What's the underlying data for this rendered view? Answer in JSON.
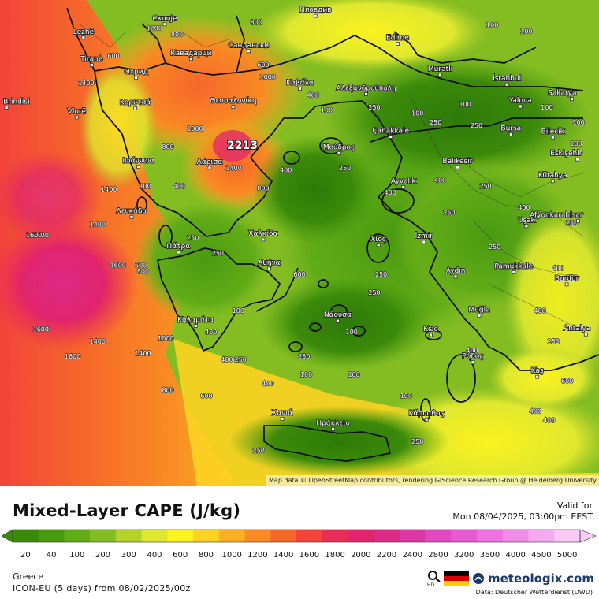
{
  "title": "Mixed-Layer CAPE (J/kg)",
  "valid_label": "Valid for",
  "valid_time": "Mon 08/04/2025, 03:00pm EEST",
  "region": "Greece",
  "model": "ICON-EU (5 days) from 08/02/2025/00z",
  "brand": "meteologix.com",
  "data_credit": "Data: Deutscher Wetterdienst (DWD)",
  "attribution": "Map data © OpenStreetMap contributors, rendering GIScience Research Group @ Heidelberg University",
  "peak_value": "2213",
  "scale": [
    {
      "label": "20",
      "color": "#3b8a0a"
    },
    {
      "label": "40",
      "color": "#4a9a10"
    },
    {
      "label": "100",
      "color": "#62ac18"
    },
    {
      "label": "200",
      "color": "#84bd22"
    },
    {
      "label": "300",
      "color": "#b4d22a"
    },
    {
      "label": "400",
      "color": "#dfe82e"
    },
    {
      "label": "600",
      "color": "#fbf21f"
    },
    {
      "label": "800",
      "color": "#fcd322"
    },
    {
      "label": "1000",
      "color": "#fbaf22"
    },
    {
      "label": "1200",
      "color": "#f98a24"
    },
    {
      "label": "1400",
      "color": "#f6672a"
    },
    {
      "label": "1600",
      "color": "#f2443a"
    },
    {
      "label": "1800",
      "color": "#ea2b55"
    },
    {
      "label": "2000",
      "color": "#e1246c"
    },
    {
      "label": "2200",
      "color": "#dc2a87"
    },
    {
      "label": "2400",
      "color": "#dc38a3"
    },
    {
      "label": "2800",
      "color": "#e247c0"
    },
    {
      "label": "3200",
      "color": "#e85ad4"
    },
    {
      "label": "3600",
      "color": "#ee72e2"
    },
    {
      "label": "4000",
      "color": "#f28ceb"
    },
    {
      "label": "4500",
      "color": "#f6a8f1"
    },
    {
      "label": "5000",
      "color": "#fbcbf8"
    }
  ],
  "cities": [
    {
      "name": "Пловдив",
      "lon": 24.75,
      "lat": 42.14
    },
    {
      "name": "Скопје",
      "lon": 21.43,
      "lat": 42.0
    },
    {
      "name": "Lezhë",
      "lon": 19.64,
      "lat": 41.78
    },
    {
      "name": "Tiranë",
      "lon": 19.82,
      "lat": 41.33
    },
    {
      "name": "Кавадарци",
      "lon": 22.01,
      "lat": 41.43
    },
    {
      "name": "Сандански",
      "lon": 23.28,
      "lat": 41.56
    },
    {
      "name": "Edirne",
      "lon": 26.56,
      "lat": 41.68
    },
    {
      "name": "Охрид",
      "lon": 20.8,
      "lat": 41.12
    },
    {
      "name": "Muratlı",
      "lon": 27.5,
      "lat": 41.17
    },
    {
      "name": "İstanbul",
      "lon": 28.97,
      "lat": 41.01
    },
    {
      "name": "Καβάλα",
      "lon": 24.41,
      "lat": 40.94
    },
    {
      "name": "Αλεξανδρούπολη",
      "lon": 25.87,
      "lat": 40.85
    },
    {
      "name": "Θεσσαλονίκη",
      "lon": 22.94,
      "lat": 40.64
    },
    {
      "name": "Κορυτσά",
      "lon": 20.78,
      "lat": 40.62
    },
    {
      "name": "Vlorë",
      "lon": 19.49,
      "lat": 40.47
    },
    {
      "name": "Brindisi",
      "lon": 17.94,
      "lat": 40.63
    },
    {
      "name": "Yalova",
      "lon": 29.27,
      "lat": 40.65
    },
    {
      "name": "Sakarya",
      "lon": 30.4,
      "lat": 40.77
    },
    {
      "name": "Çanakkale",
      "lon": 26.41,
      "lat": 40.15
    },
    {
      "name": "Bursa",
      "lon": 29.06,
      "lat": 40.19
    },
    {
      "name": "Bilecik",
      "lon": 29.98,
      "lat": 40.14
    },
    {
      "name": "Μούδρος",
      "lon": 25.27,
      "lat": 39.88
    },
    {
      "name": "Λάρισα",
      "lon": 22.42,
      "lat": 39.64
    },
    {
      "name": "Ιωάννινα",
      "lon": 20.85,
      "lat": 39.66
    },
    {
      "name": "Balıkesir",
      "lon": 27.88,
      "lat": 39.65
    },
    {
      "name": "Eskişehir",
      "lon": 30.52,
      "lat": 39.78
    },
    {
      "name": "Kütahya",
      "lon": 29.98,
      "lat": 39.42
    },
    {
      "name": "Ayvalık",
      "lon": 26.69,
      "lat": 39.32
    },
    {
      "name": "Λευκάδα",
      "lon": 20.7,
      "lat": 38.83
    },
    {
      "name": "Χαλκίδα",
      "lon": 23.6,
      "lat": 38.46
    },
    {
      "name": "Πάτρα",
      "lon": 21.73,
      "lat": 38.25
    },
    {
      "name": "Χίος",
      "lon": 26.14,
      "lat": 38.37
    },
    {
      "name": "İzmir",
      "lon": 27.14,
      "lat": 38.42
    },
    {
      "name": "Uşak",
      "lon": 29.4,
      "lat": 38.68
    },
    {
      "name": "Afyonkarahisar",
      "lon": 30.54,
      "lat": 38.76
    },
    {
      "name": "Αθήνα",
      "lon": 23.73,
      "lat": 37.98
    },
    {
      "name": "Aydın",
      "lon": 27.84,
      "lat": 37.85
    },
    {
      "name": "Pamukkale",
      "lon": 29.12,
      "lat": 37.92
    },
    {
      "name": "Burdur",
      "lon": 30.29,
      "lat": 37.72
    },
    {
      "name": "Καλαμάτα",
      "lon": 22.11,
      "lat": 37.04
    },
    {
      "name": "Νάουσα",
      "lon": 25.24,
      "lat": 37.12
    },
    {
      "name": "Κως",
      "lon": 27.29,
      "lat": 36.89
    },
    {
      "name": "Muğla",
      "lon": 28.36,
      "lat": 37.21
    },
    {
      "name": "Antalya",
      "lon": 30.71,
      "lat": 36.9
    },
    {
      "name": "Ρόδος",
      "lon": 28.22,
      "lat": 36.44
    },
    {
      "name": "Kaş",
      "lon": 29.64,
      "lat": 36.2
    },
    {
      "name": "Χανιά",
      "lon": 24.02,
      "lat": 35.51
    },
    {
      "name": "Κάρπαθος",
      "lon": 27.2,
      "lat": 35.5
    },
    {
      "name": "Ηράκλειο",
      "lon": 25.14,
      "lat": 35.34
    }
  ],
  "value_labels": [
    {
      "v": "800",
      "lon": 23.45,
      "lat": 42.0
    },
    {
      "v": "100",
      "lon": 28.65,
      "lat": 41.95
    },
    {
      "v": "100",
      "lon": 29.4,
      "lat": 41.85
    },
    {
      "v": "1400",
      "lon": 19.7,
      "lat": 41.0
    },
    {
      "v": "1400",
      "lon": 20.2,
      "lat": 39.25
    },
    {
      "v": "1400",
      "lon": 19.95,
      "lat": 38.67
    },
    {
      "v": "1400",
      "lon": 18.7,
      "lat": 38.5
    },
    {
      "v": "1600",
      "lon": 18.55,
      "lat": 38.5
    },
    {
      "v": "1600",
      "lon": 20.4,
      "lat": 38.0
    },
    {
      "v": "1600",
      "lon": 18.7,
      "lat": 36.95
    },
    {
      "v": "1600",
      "lon": 19.4,
      "lat": 36.5
    },
    {
      "v": "1400",
      "lon": 19.95,
      "lat": 36.75
    },
    {
      "v": "1400",
      "lon": 20.95,
      "lat": 36.55
    },
    {
      "v": "1000",
      "lon": 21.45,
      "lat": 36.8
    },
    {
      "v": "800",
      "lon": 21.5,
      "lat": 35.95
    },
    {
      "v": "600",
      "lon": 22.35,
      "lat": 35.85
    },
    {
      "v": "400",
      "lon": 23.7,
      "lat": 36.05
    },
    {
      "v": "250",
      "lon": 23.5,
      "lat": 34.95
    },
    {
      "v": "250",
      "lon": 27.7,
      "lat": 38.87
    },
    {
      "v": "250",
      "lon": 26.2,
      "lat": 37.85
    },
    {
      "v": "250",
      "lon": 27.4,
      "lat": 40.35
    },
    {
      "v": "250",
      "lon": 25.4,
      "lat": 39.6
    },
    {
      "v": "250",
      "lon": 28.5,
      "lat": 39.3
    },
    {
      "v": "250",
      "lon": 28.7,
      "lat": 38.3
    },
    {
      "v": "250",
      "lon": 27.0,
      "lat": 35.1
    },
    {
      "v": "400",
      "lon": 29.35,
      "lat": 38.95
    },
    {
      "v": "400",
      "lon": 29.7,
      "lat": 37.25
    },
    {
      "v": "250",
      "lon": 30.0,
      "lat": 36.75
    },
    {
      "v": "400",
      "lon": 28.2,
      "lat": 36.6
    },
    {
      "v": "400",
      "lon": 29.9,
      "lat": 35.45
    },
    {
      "v": "600",
      "lon": 30.3,
      "lat": 36.1
    },
    {
      "v": "100",
      "lon": 25.6,
      "lat": 36.2
    },
    {
      "v": "100",
      "lon": 26.75,
      "lat": 35.85
    },
    {
      "v": "250",
      "lon": 24.5,
      "lat": 36.5
    },
    {
      "v": "250",
      "lon": 22.6,
      "lat": 38.2
    },
    {
      "v": "800",
      "lon": 23.6,
      "lat": 39.27
    },
    {
      "v": "400",
      "lon": 24.1,
      "lat": 39.57
    },
    {
      "v": "1000",
      "lon": 22.1,
      "lat": 40.25
    },
    {
      "v": "1400",
      "lon": 22.95,
      "lat": 39.6
    },
    {
      "v": "800",
      "lon": 21.7,
      "lat": 41.8
    },
    {
      "v": "600",
      "lon": 23.6,
      "lat": 41.3
    },
    {
      "v": "1000",
      "lon": 23.7,
      "lat": 41.1
    },
    {
      "v": "400",
      "lon": 24.7,
      "lat": 40.8
    },
    {
      "v": "100",
      "lon": 25.0,
      "lat": 40.55
    },
    {
      "v": "250",
      "lon": 26.05,
      "lat": 40.6
    },
    {
      "v": "100",
      "lon": 27.0,
      "lat": 40.5
    },
    {
      "v": "100",
      "lon": 28.05,
      "lat": 40.65
    },
    {
      "v": "250",
      "lon": 28.3,
      "lat": 40.3
    },
    {
      "v": "100",
      "lon": 29.85,
      "lat": 40.6
    },
    {
      "v": "100",
      "lon": 30.55,
      "lat": 40.35
    },
    {
      "v": "100",
      "lon": 30.5,
      "lat": 40.0
    },
    {
      "v": "600",
      "lon": 24.4,
      "lat": 37.85
    },
    {
      "v": "800",
      "lon": 21.5,
      "lat": 39.95
    },
    {
      "v": "600",
      "lon": 20.9,
      "lat": 38.0
    },
    {
      "v": "800",
      "lon": 20.95,
      "lat": 37.9
    },
    {
      "v": "250",
      "lon": 22.05,
      "lat": 38.45
    },
    {
      "v": "100",
      "lon": 23.05,
      "lat": 37.25
    },
    {
      "v": "400",
      "lon": 22.8,
      "lat": 36.45
    },
    {
      "v": "250",
      "lon": 23.1,
      "lat": 36.45
    },
    {
      "v": "400",
      "lon": 22.45,
      "lat": 36.9
    },
    {
      "v": "100",
      "lon": 24.55,
      "lat": 36.2
    },
    {
      "v": "100",
      "lon": 25.55,
      "lat": 36.9
    },
    {
      "v": "250",
      "lon": 26.05,
      "lat": 37.55
    },
    {
      "v": "400",
      "lon": 29.6,
      "lat": 35.6
    },
    {
      "v": "400",
      "lon": 30.1,
      "lat": 37.95
    },
    {
      "v": "250",
      "lon": 30.4,
      "lat": 37.8
    },
    {
      "v": "250",
      "lon": 30.4,
      "lat": 38.7
    },
    {
      "v": "400",
      "lon": 27.5,
      "lat": 39.4
    },
    {
      "v": "400",
      "lon": 26.4,
      "lat": 39.2
    },
    {
      "v": "1200",
      "lon": 21.2,
      "lat": 41.9
    },
    {
      "v": "600",
      "lon": 20.3,
      "lat": 41.45
    },
    {
      "v": "400",
      "lon": 21.75,
      "lat": 39.3
    },
    {
      "v": "100",
      "lon": 21.0,
      "lat": 39.3
    }
  ]
}
